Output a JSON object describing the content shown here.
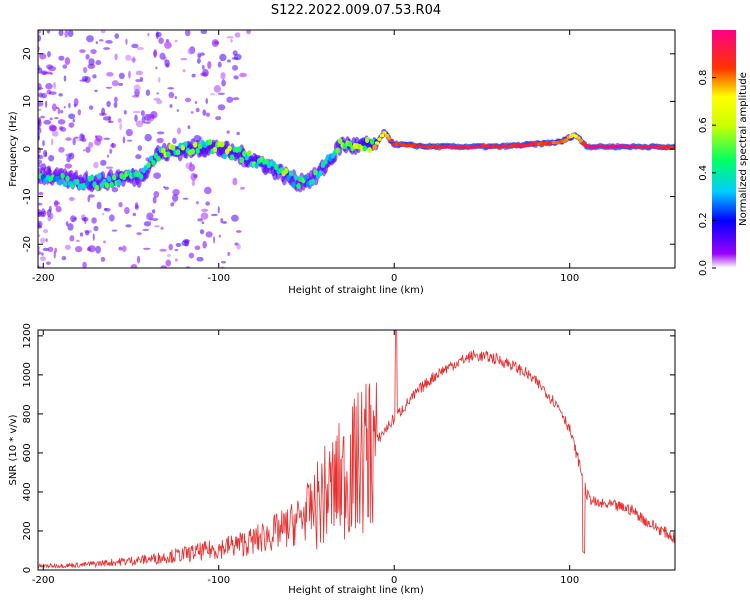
{
  "title": "S122.2022.009.07.53.R04",
  "chart_data": [
    {
      "type": "heatmap",
      "xlabel": "Height of straight line (km)",
      "ylabel": "Frequency (Hz)",
      "xlim": [
        -203,
        160
      ],
      "ylim": [
        -25,
        25
      ],
      "x_ticks": [
        -200,
        -100,
        0,
        100
      ],
      "y_ticks": [
        -20,
        -10,
        0,
        10,
        20
      ],
      "colorbar": {
        "label": "Normalized spectral amplitude",
        "range": [
          0,
          1
        ],
        "ticks": [
          0.0,
          0.2,
          0.4,
          0.6,
          0.8
        ],
        "colors": [
          "#ffffff",
          "#8800ff",
          "#0000ff",
          "#00ffff",
          "#00ff00",
          "#ffff00",
          "#ff0000",
          "#ff0080"
        ]
      },
      "ridge": [
        {
          "x": -200,
          "f": -5.5,
          "a": 0.4
        },
        {
          "x": -185,
          "f": -6.5,
          "a": 0.4
        },
        {
          "x": -170,
          "f": -7,
          "a": 0.45
        },
        {
          "x": -155,
          "f": -6,
          "a": 0.5
        },
        {
          "x": -145,
          "f": -6,
          "a": 0.45
        },
        {
          "x": -135,
          "f": -1,
          "a": 0.5
        },
        {
          "x": -125,
          "f": -0.5,
          "a": 0.55
        },
        {
          "x": -115,
          "f": 0,
          "a": 0.55
        },
        {
          "x": -105,
          "f": 0.5,
          "a": 0.5
        },
        {
          "x": -95,
          "f": -0.5,
          "a": 0.55
        },
        {
          "x": -85,
          "f": -1.5,
          "a": 0.55
        },
        {
          "x": -75,
          "f": -3,
          "a": 0.5
        },
        {
          "x": -65,
          "f": -5,
          "a": 0.5
        },
        {
          "x": -55,
          "f": -7,
          "a": 0.45
        },
        {
          "x": -45,
          "f": -6,
          "a": 0.45
        },
        {
          "x": -38,
          "f": -3,
          "a": 0.45
        },
        {
          "x": -30,
          "f": 1,
          "a": 0.55
        },
        {
          "x": -20,
          "f": 0.5,
          "a": 0.6
        },
        {
          "x": -10,
          "f": 1,
          "a": 0.7
        },
        {
          "x": -6,
          "f": 3.5,
          "a": 0.75
        },
        {
          "x": 0,
          "f": 1,
          "a": 0.9
        },
        {
          "x": 20,
          "f": 0.5,
          "a": 0.9
        },
        {
          "x": 40,
          "f": 0.5,
          "a": 0.95
        },
        {
          "x": 60,
          "f": 0.5,
          "a": 0.95
        },
        {
          "x": 80,
          "f": 1,
          "a": 0.9
        },
        {
          "x": 95,
          "f": 1.5,
          "a": 0.85
        },
        {
          "x": 103,
          "f": 3,
          "a": 0.7
        },
        {
          "x": 110,
          "f": 0.5,
          "a": 1
        },
        {
          "x": 130,
          "f": 0.5,
          "a": 1
        },
        {
          "x": 145,
          "f": 0.5,
          "a": 0.95
        },
        {
          "x": 160,
          "f": 0.3,
          "a": 0.9
        }
      ]
    },
    {
      "type": "line",
      "xlabel": "Height of straight line (km)",
      "ylabel": "SNR (10 * v/v)",
      "xlim": [
        -203,
        160
      ],
      "ylim": [
        0,
        1230
      ],
      "x_ticks": [
        -200,
        -100,
        0,
        100
      ],
      "y_ticks": [
        0,
        200,
        400,
        600,
        800,
        1000,
        1200
      ],
      "color": "#e83030",
      "envelope": [
        {
          "x": -203,
          "y": 20
        },
        {
          "x": -180,
          "y": 25
        },
        {
          "x": -160,
          "y": 40
        },
        {
          "x": -140,
          "y": 55
        },
        {
          "x": -120,
          "y": 80
        },
        {
          "x": -100,
          "y": 110
        },
        {
          "x": -80,
          "y": 150
        },
        {
          "x": -60,
          "y": 220
        },
        {
          "x": -45,
          "y": 330
        },
        {
          "x": -35,
          "y": 420
        },
        {
          "x": -25,
          "y": 500
        },
        {
          "x": -15,
          "y": 600
        },
        {
          "x": -5,
          "y": 720
        },
        {
          "x": 5,
          "y": 830
        },
        {
          "x": 15,
          "y": 930
        },
        {
          "x": 25,
          "y": 1010
        },
        {
          "x": 35,
          "y": 1060
        },
        {
          "x": 45,
          "y": 1100
        },
        {
          "x": 55,
          "y": 1090
        },
        {
          "x": 65,
          "y": 1060
        },
        {
          "x": 75,
          "y": 1010
        },
        {
          "x": 85,
          "y": 930
        },
        {
          "x": 95,
          "y": 820
        },
        {
          "x": 100,
          "y": 720
        },
        {
          "x": 105,
          "y": 560
        },
        {
          "x": 110,
          "y": 380
        },
        {
          "x": 115,
          "y": 340
        },
        {
          "x": 125,
          "y": 330
        },
        {
          "x": 135,
          "y": 310
        },
        {
          "x": 145,
          "y": 240
        },
        {
          "x": 155,
          "y": 190
        },
        {
          "x": 160,
          "y": 160
        }
      ]
    }
  ]
}
